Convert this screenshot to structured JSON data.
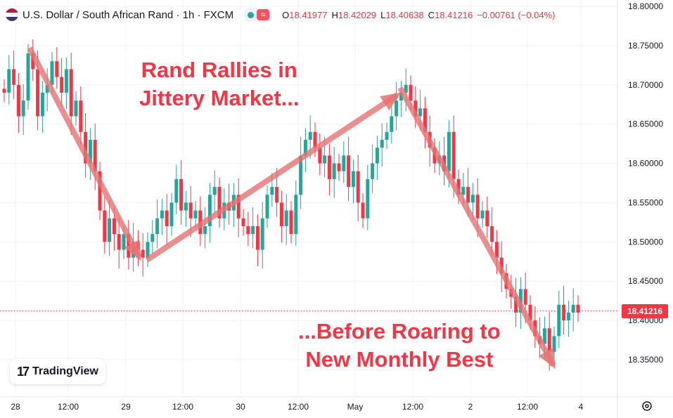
{
  "header": {
    "symbol": "U.S. Dollar / South African Rand · 1h · FXCM",
    "ohlc": [
      {
        "key": "O",
        "value": "18.41977"
      },
      {
        "key": "H",
        "value": "18.42029"
      },
      {
        "key": "L",
        "value": "18.40638"
      },
      {
        "key": "C",
        "value": "18.41216"
      }
    ],
    "change": "−0.00761 (−0.04%)",
    "flag_icon": "us-flag-icon",
    "status_icon": "market-open-dot-icon",
    "indicator_icon": "wave-icon"
  },
  "logo": {
    "text": "TradingView",
    "icon": "tradingview-logo-icon"
  },
  "annotations": {
    "top_line1": "Rand Rallies in",
    "top_line2": "Jittery Market...",
    "bottom_line1": "...Before Roaring to",
    "bottom_line2": "New Monthly Best"
  },
  "last_price_label": "18.41216",
  "colors": {
    "up": "#26a69a",
    "down": "#f23645",
    "annotation": "#f23645",
    "arrow": "#e57373",
    "grid": "#f0f3fa"
  },
  "chart_data": {
    "type": "candlestick",
    "title": "U.S. Dollar / South African Rand · 1h · FXCM",
    "ylim": [
      18.32,
      18.82
    ],
    "y_ticks": [
      "18.80000",
      "18.75000",
      "18.70000",
      "18.65000",
      "18.60000",
      "18.55000",
      "18.50000",
      "18.45000",
      "18.40000",
      "18.35000"
    ],
    "x_ticks": [
      "28",
      "12:00",
      "29",
      "12:00",
      "30",
      "12:00",
      "May",
      "12:00",
      "2",
      "12:00",
      "4"
    ],
    "last_price": 18.41216,
    "closes": [
      18.69,
      18.72,
      18.7,
      18.66,
      18.68,
      18.74,
      18.72,
      18.66,
      18.69,
      18.7,
      18.73,
      18.71,
      18.69,
      18.72,
      18.66,
      18.68,
      18.64,
      18.6,
      18.63,
      18.59,
      18.54,
      18.5,
      18.53,
      18.51,
      18.49,
      18.51,
      18.48,
      18.5,
      18.49,
      18.48,
      18.5,
      18.51,
      18.53,
      18.54,
      18.52,
      18.55,
      18.58,
      18.54,
      18.55,
      18.53,
      18.54,
      18.51,
      18.52,
      18.56,
      18.57,
      18.53,
      18.55,
      18.54,
      18.56,
      18.53,
      18.52,
      18.51,
      18.52,
      18.49,
      18.53,
      18.56,
      18.57,
      18.55,
      18.52,
      18.54,
      18.51,
      18.56,
      18.61,
      18.63,
      18.64,
      18.62,
      18.6,
      18.61,
      18.58,
      18.6,
      18.59,
      18.61,
      18.57,
      18.59,
      18.55,
      18.53,
      18.58,
      18.6,
      18.62,
      18.63,
      18.64,
      18.66,
      18.68,
      18.69,
      18.7,
      18.68,
      18.66,
      18.67,
      18.64,
      18.62,
      18.6,
      18.61,
      18.59,
      18.64,
      18.58,
      18.56,
      18.57,
      18.55,
      18.56,
      18.53,
      18.54,
      18.52,
      18.5,
      18.48,
      18.46,
      18.44,
      18.43,
      18.41,
      18.44,
      18.42,
      18.4,
      18.38,
      18.37,
      18.39,
      18.36,
      18.38,
      18.42,
      18.4,
      18.41,
      18.42,
      18.41
    ]
  }
}
